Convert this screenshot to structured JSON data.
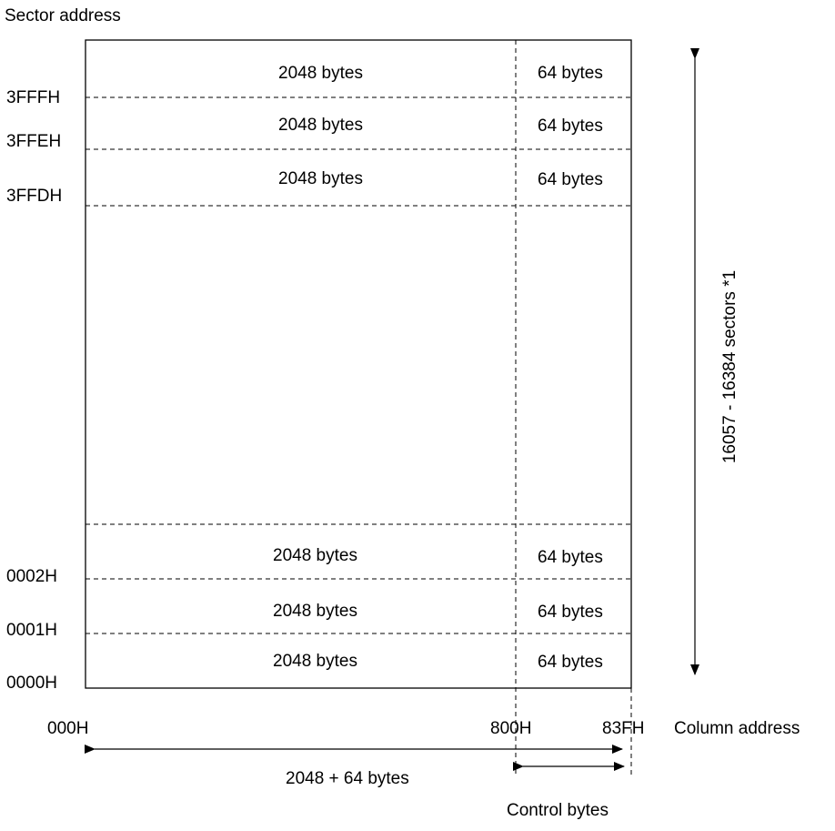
{
  "sector_address_label": "Sector address",
  "column_address_label": "Column address",
  "sector_count_label": "16057 - 16384 sectors *1",
  "total_width_label": "2048 + 64 bytes",
  "control_bytes_label": "Control bytes",
  "column_ticks": {
    "start": "000H",
    "data_end": "800H",
    "end": "83FH"
  },
  "top_rows": [
    {
      "data": "2048 bytes",
      "control": "64 bytes",
      "address": "3FFFH"
    },
    {
      "data": "2048 bytes",
      "control": "64 bytes",
      "address": "3FFEH"
    },
    {
      "data": "2048 bytes",
      "control": "64 bytes",
      "address": "3FFDH"
    }
  ],
  "bottom_rows": [
    {
      "data": "2048 bytes",
      "control": "64 bytes",
      "address": "0002H"
    },
    {
      "data": "2048 bytes",
      "control": "64 bytes",
      "address": "0001H"
    },
    {
      "data": "2048 bytes",
      "control": "64 bytes",
      "address": "0000H"
    }
  ]
}
